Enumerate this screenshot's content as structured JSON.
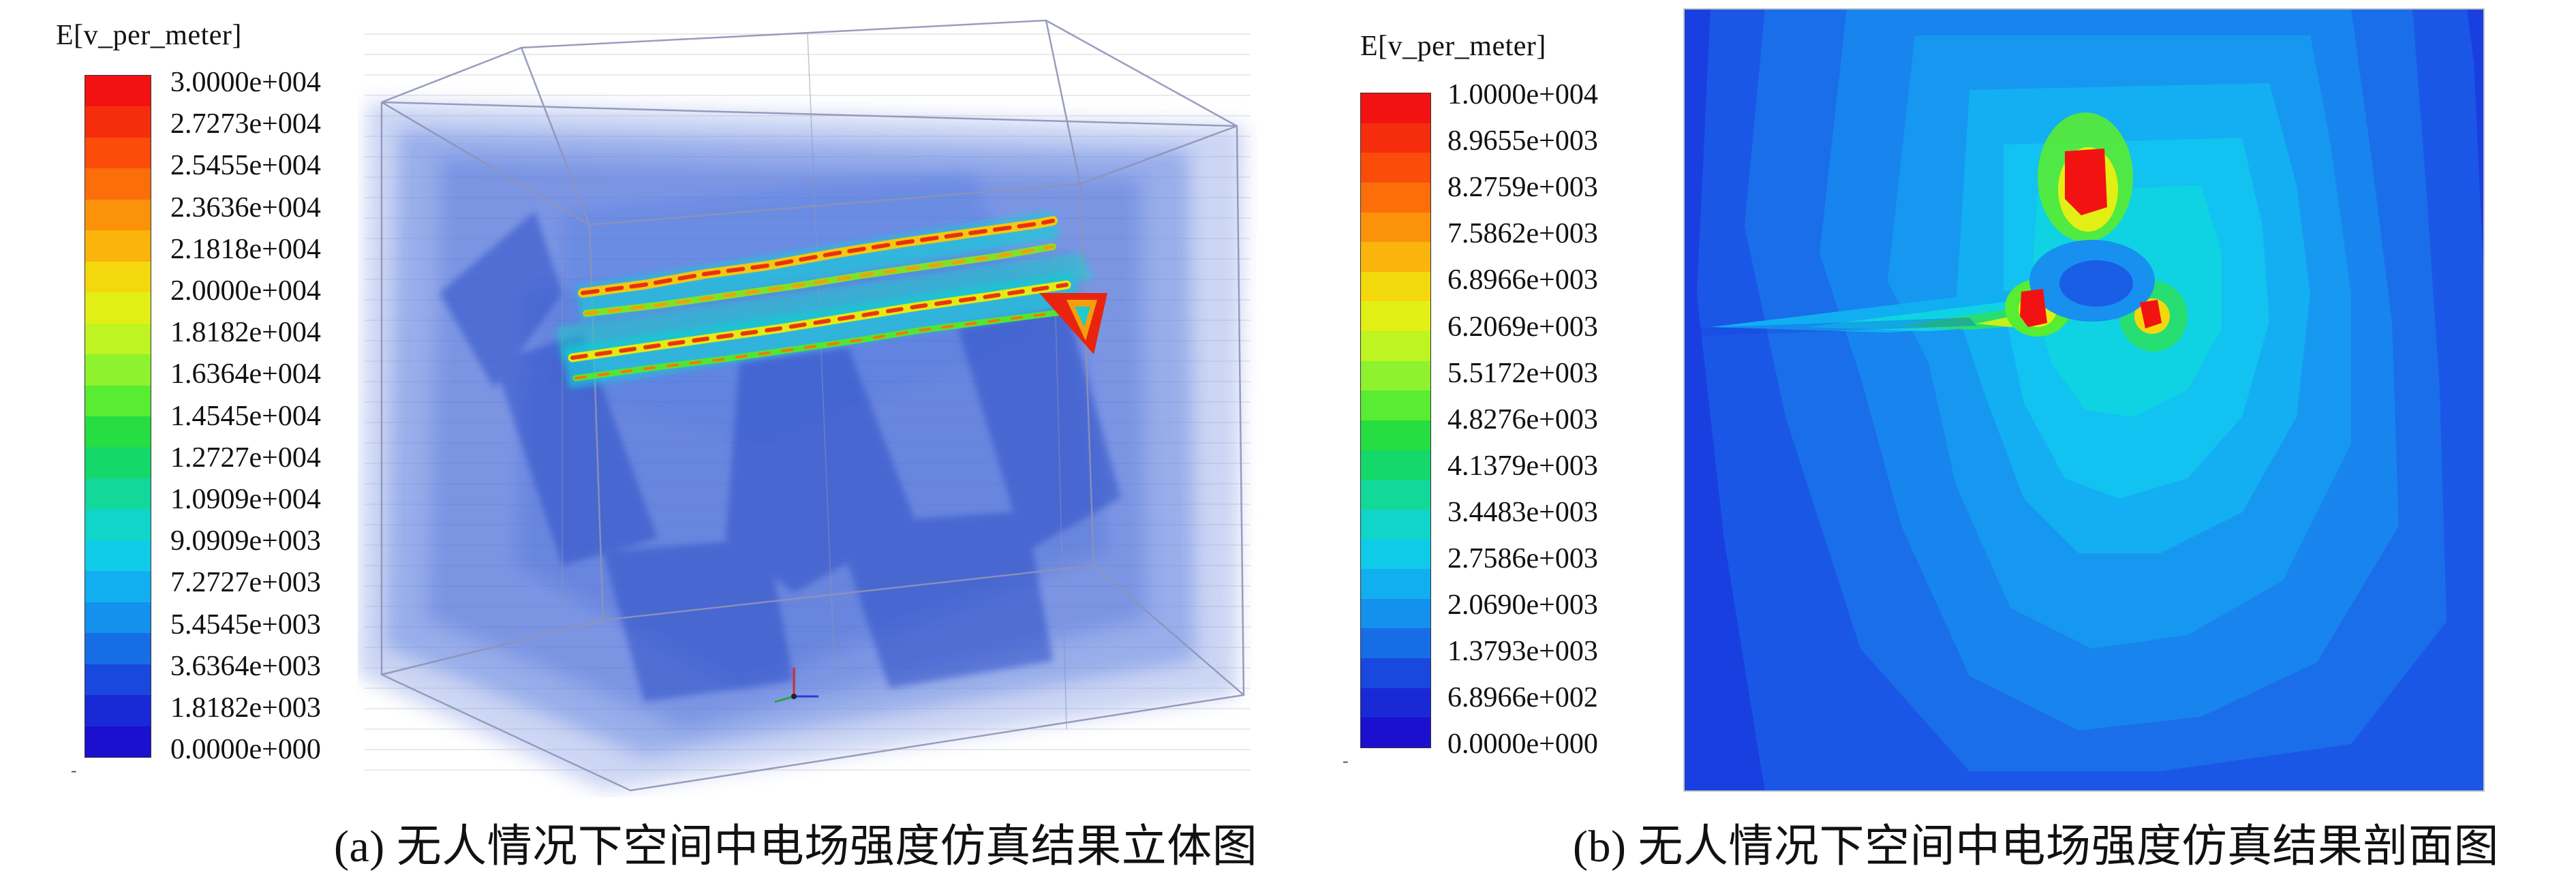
{
  "figures": [
    {
      "id": "a",
      "legend_title": "E[v_per_meter]",
      "scale_labels": [
        "3.0000e+004",
        "2.7273e+004",
        "2.5455e+004",
        "2.3636e+004",
        "2.1818e+004",
        "2.0000e+004",
        "1.8182e+004",
        "1.6364e+004",
        "1.4545e+004",
        "1.2727e+004",
        "1.0909e+004",
        "9.0909e+003",
        "7.2727e+003",
        "5.4545e+003",
        "3.6364e+003",
        "1.8182e+003",
        "0.0000e+000"
      ],
      "colormap": [
        "#f21212",
        "#f62d0d",
        "#fb4c0a",
        "#fb6e0a",
        "#fb920a",
        "#fbb40c",
        "#f4d80e",
        "#e2ef14",
        "#bdf421",
        "#8ef22e",
        "#58ec32",
        "#26de42",
        "#14d86a",
        "#12d89a",
        "#0fd6c8",
        "#0fcbe8",
        "#12aff0",
        "#1490ed",
        "#176de6",
        "#1948df",
        "#1a29d6",
        "#1b10cf"
      ],
      "caption": "(a) 无人情况下空间中电场强度仿真结果立体图"
    },
    {
      "id": "b",
      "legend_title": "E[v_per_meter]",
      "scale_labels": [
        "1.0000e+004",
        "8.9655e+003",
        "8.2759e+003",
        "7.5862e+003",
        "6.8966e+003",
        "6.2069e+003",
        "5.5172e+003",
        "4.8276e+003",
        "4.1379e+003",
        "3.4483e+003",
        "2.7586e+003",
        "2.0690e+003",
        "1.3793e+003",
        "6.8966e+002",
        "0.0000e+000"
      ],
      "colormap": [
        "#f21212",
        "#f62d0d",
        "#fb4c0a",
        "#fb6e0a",
        "#fb920a",
        "#fbb40c",
        "#f4d80e",
        "#e2ef14",
        "#bdf421",
        "#8ef22e",
        "#58ec32",
        "#26de42",
        "#14d86a",
        "#12d89a",
        "#0fd6c8",
        "#0fcbe8",
        "#12aff0",
        "#1490ed",
        "#176de6",
        "#1948df",
        "#1a29d6",
        "#1b10cf"
      ],
      "caption": "(b) 无人情况下空间中电场强度仿真结果剖面图"
    }
  ]
}
